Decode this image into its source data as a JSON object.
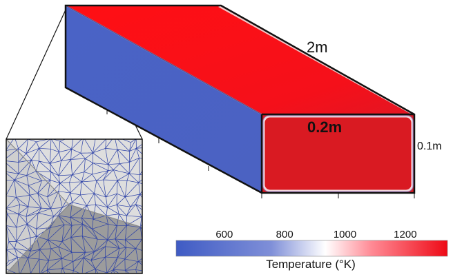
{
  "dimensions": {
    "length": "2m",
    "width": "0.2m",
    "height": "0.1m"
  },
  "colorbar": {
    "title": "Temperature (°K)",
    "min": 440,
    "max": 1340,
    "ticks": [
      {
        "value": 600,
        "label": "600"
      },
      {
        "value": 800,
        "label": "800"
      },
      {
        "value": 1000,
        "label": "1000"
      },
      {
        "value": 1200,
        "label": "1200"
      }
    ],
    "colors": {
      "cold": "#4a63c6",
      "mid": "#ffffff",
      "hot": "#ee0a16"
    }
  },
  "colors": {
    "top_face": "#ee1a1d",
    "side_face": "#4a63c6",
    "end_face": "#d51820",
    "edge": "#111111",
    "mesh_line": "#2a3fa6",
    "mesh_light": "#dedede",
    "mesh_dark": "#9c9c9c"
  }
}
